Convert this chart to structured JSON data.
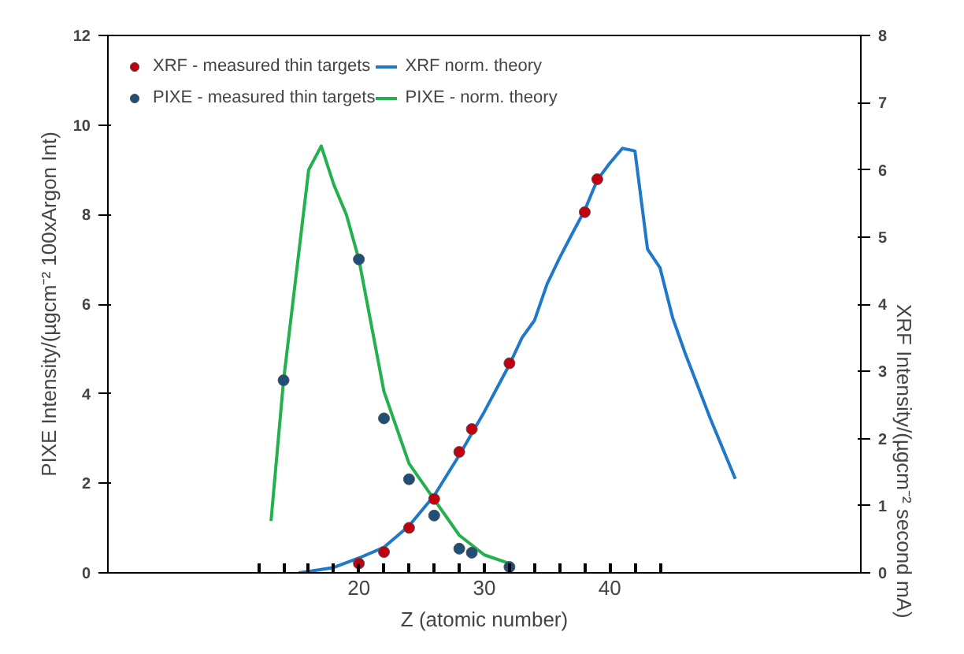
{
  "chart_data": {
    "type": "line",
    "xlabel": "Z (atomic number)",
    "ylabel": "PIXE Intensity/(µgcm⁻² 100xArgon Int)",
    "y2label": "XRF Intensity/(µgcm⁻² second mA)",
    "xlim": [
      0,
      60
    ],
    "ylim": [
      0,
      12
    ],
    "y2lim": [
      0,
      8
    ],
    "xticks": [
      {
        "value": 12,
        "label": null
      },
      {
        "value": 14,
        "label": null
      },
      {
        "value": 16,
        "label": null
      },
      {
        "value": 18,
        "label": null
      },
      20,
      {
        "value": 22,
        "label": null
      },
      {
        "value": 24,
        "label": null
      },
      {
        "value": 26,
        "label": null
      },
      {
        "value": 28,
        "label": null
      },
      30,
      {
        "value": 32,
        "label": null
      },
      {
        "value": 34,
        "label": null
      },
      {
        "value": 36,
        "label": null
      },
      {
        "value": 38,
        "label": null
      },
      40,
      {
        "value": 42,
        "label": null
      },
      {
        "value": 44,
        "label": null
      }
    ],
    "yticks": [
      0,
      2,
      4,
      6,
      8,
      10,
      12
    ],
    "y2ticks": [
      0,
      1,
      2,
      3,
      4,
      5,
      6,
      7,
      8
    ],
    "grid": false,
    "legend": "top left",
    "series": [
      {
        "name": "XRF - measured thin targets",
        "type": "scatter",
        "axis": "y2",
        "marker": "circle",
        "color": "#c00010",
        "x": [
          20,
          22,
          24,
          26,
          28,
          29,
          32,
          38,
          39
        ],
        "values": [
          0.14,
          0.31,
          0.67,
          1.1,
          1.8,
          2.14,
          3.12,
          5.37,
          5.86
        ]
      },
      {
        "name": "PIXE - measured thin targets",
        "type": "scatter",
        "marker": "circle",
        "color": "#1f4e79",
        "x": [
          14,
          20,
          22,
          24,
          26,
          28,
          29,
          32
        ],
        "values": [
          4.3,
          7.0,
          3.45,
          2.09,
          1.28,
          0.54,
          0.45,
          0.13
        ]
      },
      {
        "name": "XRF norm. theory",
        "axis": "y2",
        "color": "#1f78c8",
        "x": [
          15.2,
          16,
          18,
          20,
          22,
          24,
          26,
          28,
          30,
          32,
          33,
          34,
          35,
          36,
          37,
          38,
          39,
          40,
          41,
          42,
          43,
          44,
          45,
          46,
          48,
          50
        ],
        "values": [
          0,
          0.02,
          0.08,
          0.22,
          0.38,
          0.7,
          1.15,
          1.75,
          2.4,
          3.1,
          3.5,
          3.76,
          4.3,
          4.69,
          5.05,
          5.4,
          5.85,
          6.1,
          6.32,
          6.28,
          4.82,
          4.54,
          3.8,
          3.27,
          2.3,
          1.4
        ]
      },
      {
        "name": "PIXE - norm. theory",
        "color": "#22b14c",
        "x": [
          13,
          14,
          16,
          17,
          18,
          19,
          20,
          22,
          24,
          26,
          28,
          30,
          32
        ],
        "values": [
          1.16,
          4.3,
          9.0,
          9.53,
          8.67,
          8.0,
          7.0,
          4.05,
          2.44,
          1.64,
          0.84,
          0.4,
          0.21
        ]
      }
    ]
  }
}
